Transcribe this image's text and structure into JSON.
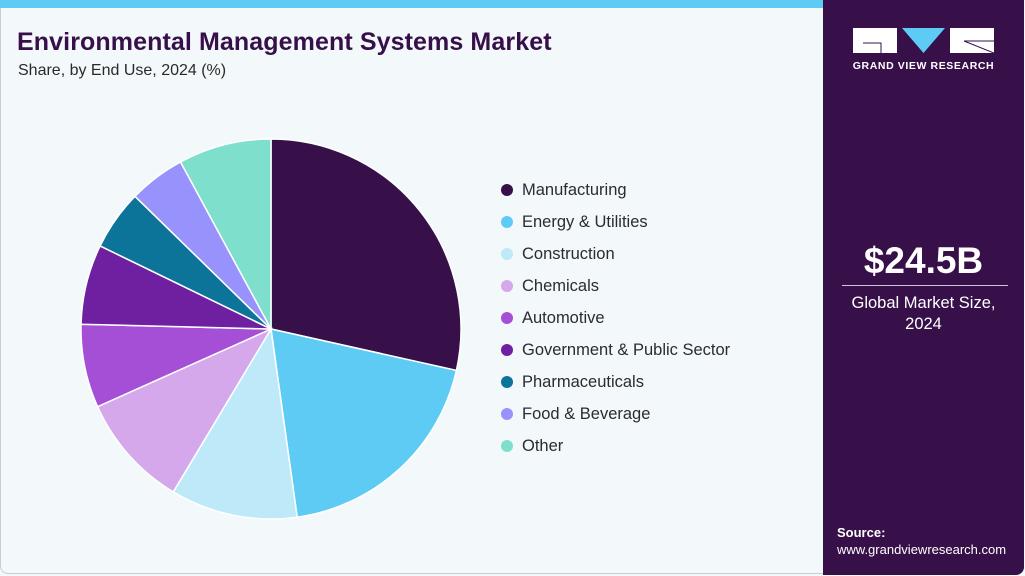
{
  "header": {
    "title": "Environmental Management Systems Market",
    "subtitle": "Share, by End Use, 2024 (%)"
  },
  "colors": {
    "accent_bar": "#5ecbf5",
    "title": "#37104a",
    "side_panel": "#37104a",
    "background": "#f3f8fb"
  },
  "legend": {
    "items": [
      {
        "label": "Manufacturing",
        "color": "#37104a"
      },
      {
        "label": "Energy & Utilities",
        "color": "#5ecbf5"
      },
      {
        "label": "Construction",
        "color": "#bde9f9"
      },
      {
        "label": "Chemicals",
        "color": "#d4a8ea"
      },
      {
        "label": "Automotive",
        "color": "#a44fd6"
      },
      {
        "label": "Government & Public Sector",
        "color": "#6e20a0"
      },
      {
        "label": "Pharmaceuticals",
        "color": "#0b7498"
      },
      {
        "label": "Food & Beverage",
        "color": "#9892fd"
      },
      {
        "label": "Other",
        "color": "#7ddfcc"
      }
    ]
  },
  "side_panel": {
    "logo_text": "GRAND VIEW RESEARCH",
    "logo_icon": "gvr-logo-icon",
    "market_value": "$24.5B",
    "market_label_line1": "Global Market Size,",
    "market_label_line2": "2024",
    "source_label": "Source:",
    "source_url": "www.grandviewresearch.com"
  },
  "chart_data": {
    "type": "pie",
    "title": "Environmental Management Systems Market",
    "subtitle": "Share, by End Use, 2024 (%)",
    "categories": [
      "Manufacturing",
      "Energy & Utilities",
      "Construction",
      "Chemicals",
      "Automotive",
      "Government & Public Sector",
      "Pharmaceuticals",
      "Food & Beverage",
      "Other"
    ],
    "values": [
      28.5,
      19.3,
      10.8,
      9.7,
      7.1,
      6.8,
      5.1,
      4.8,
      7.9
    ],
    "colors": [
      "#37104a",
      "#5ecbf5",
      "#bde9f9",
      "#d4a8ea",
      "#a44fd6",
      "#6e20a0",
      "#0b7498",
      "#9892fd",
      "#7ddfcc"
    ],
    "start_angle": "12 o'clock, clockwise",
    "legend_position": "right",
    "data_labels": false
  }
}
